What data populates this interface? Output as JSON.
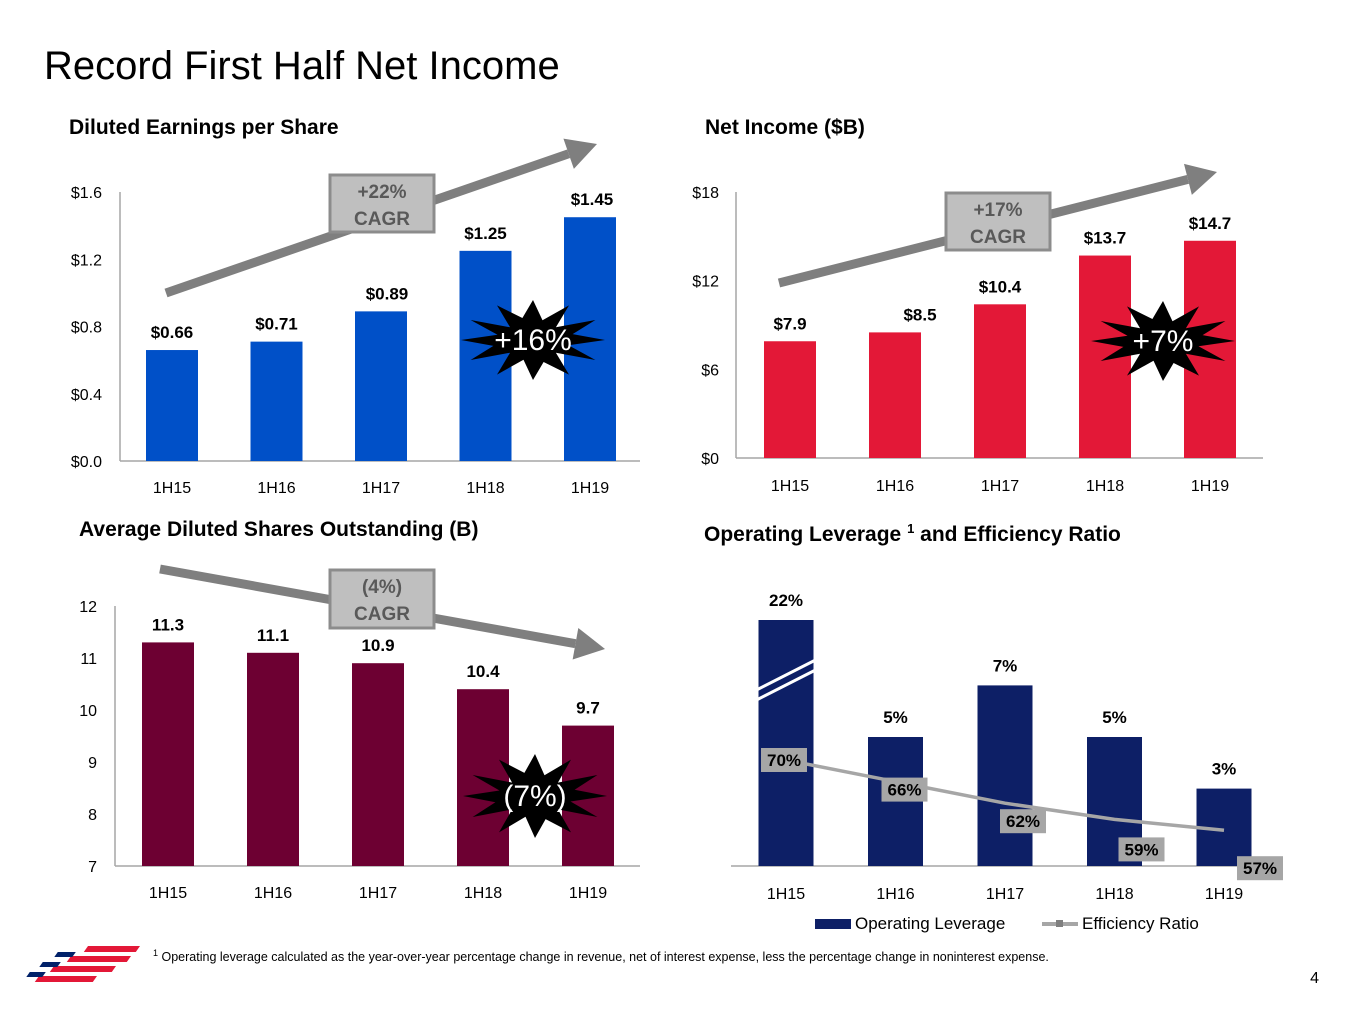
{
  "slide": {
    "title": "Record First Half Net Income",
    "page_number": "4",
    "footnote": {
      "marker": "1",
      "text": "Operating leverage calculated as the year-over-year percentage change in revenue, net of interest expense, less the percentage change in noninterest expense."
    },
    "logo": "bank-flag-logo"
  },
  "colors": {
    "eps_bar": "#0050c8",
    "net_income_bar": "#e31837",
    "shares_bar": "#6d0032",
    "op_leverage_bar": "#0d1f66",
    "efficiency_line": "#a6a6a6",
    "arrow": "#7f7f7f"
  },
  "chart_data": [
    {
      "id": "eps",
      "type": "bar",
      "title": "Diluted Earnings per Share",
      "categories": [
        "1H15",
        "1H16",
        "1H17",
        "1H18",
        "1H19"
      ],
      "values": [
        0.66,
        0.71,
        0.89,
        1.25,
        1.45
      ],
      "data_labels": [
        "$0.66",
        "$0.71",
        "$0.89",
        "$1.25",
        "$1.45"
      ],
      "ylim": [
        0,
        1.6
      ],
      "yticks": [
        0,
        0.4,
        0.8,
        1.2,
        1.6
      ],
      "ytick_labels": [
        "$0.0",
        "$0.4",
        "$0.8",
        "$1.2",
        "$1.6"
      ],
      "annotations": {
        "cagr_value": "+22%",
        "cagr_label": "CAGR",
        "burst": "+16%",
        "trend": "up"
      }
    },
    {
      "id": "net_income",
      "type": "bar",
      "title": "Net Income ($B)",
      "categories": [
        "1H15",
        "1H16",
        "1H17",
        "1H18",
        "1H19"
      ],
      "values": [
        7.9,
        8.5,
        10.4,
        13.7,
        14.7
      ],
      "data_labels": [
        "$7.9",
        "$8.5",
        "$10.4",
        "$13.7",
        "$14.7"
      ],
      "ylim": [
        0,
        18
      ],
      "yticks": [
        0,
        6,
        12,
        18
      ],
      "ytick_labels": [
        "$0",
        "$6",
        "$12",
        "$18"
      ],
      "annotations": {
        "cagr_value": "+17%",
        "cagr_label": "CAGR",
        "burst": "+7%",
        "trend": "up"
      }
    },
    {
      "id": "shares",
      "type": "bar",
      "title": "Average Diluted Shares Outstanding (B)",
      "categories": [
        "1H15",
        "1H16",
        "1H17",
        "1H18",
        "1H19"
      ],
      "values": [
        11.3,
        11.1,
        10.9,
        10.4,
        9.7
      ],
      "data_labels": [
        "11.3",
        "11.1",
        "10.9",
        "10.4",
        "9.7"
      ],
      "ylim": [
        7,
        12
      ],
      "yticks": [
        7,
        8,
        9,
        10,
        11,
        12
      ],
      "ytick_labels": [
        "7",
        "8",
        "9",
        "10",
        "11",
        "12"
      ],
      "annotations": {
        "cagr_value": "(4%)",
        "cagr_label": "CAGR",
        "burst": "(7%)",
        "trend": "down"
      }
    },
    {
      "id": "operating_leverage",
      "type": "bar",
      "title": "Operating Leverage",
      "title_marker": "1",
      "title_suffix": "and Efficiency Ratio",
      "categories": [
        "1H15",
        "1H16",
        "1H17",
        "1H18",
        "1H19"
      ],
      "series": [
        {
          "name": "Operating Leverage",
          "type": "bar",
          "values": [
            22,
            5,
            7,
            5,
            3
          ],
          "data_labels": [
            "22%",
            "5%",
            "7%",
            "5%",
            "3%"
          ],
          "axis_break_on_first": true
        },
        {
          "name": "Efficiency Ratio",
          "type": "line",
          "values": [
            70,
            66,
            62,
            59,
            57
          ],
          "data_labels": [
            "70%",
            "66%",
            "62%",
            "59%",
            "57%"
          ]
        }
      ],
      "legend": "bottom"
    }
  ]
}
